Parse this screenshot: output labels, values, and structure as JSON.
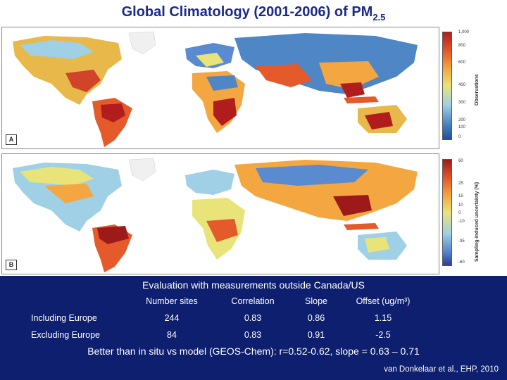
{
  "title": {
    "text": "Global Climatology (2001-2006) of PM",
    "subscript": "2.5"
  },
  "map_a": {
    "panel_label": "A",
    "colorbar_title": "Observations",
    "colorbar_ticks": [
      "1,000",
      "800",
      "600",
      "400",
      "300",
      "200",
      "100",
      "0"
    ]
  },
  "map_b": {
    "panel_label": "B",
    "colorbar_title": "Sampling-induced uncertainty (%)",
    "colorbar_ticks": [
      "60",
      "25",
      "15",
      "10",
      "0",
      "-10",
      "-35",
      "-60"
    ]
  },
  "evaluation": {
    "title": "Evaluation with measurements outside Canada/US",
    "columns": [
      "",
      "Number sites",
      "Correlation",
      "Slope",
      "Offset (ug/m³)"
    ],
    "rows": [
      {
        "label": "Including Europe",
        "sites": "244",
        "correlation": "0.83",
        "slope": "0.86",
        "offset": "1.15"
      },
      {
        "label": "Excluding Europe",
        "sites": "84",
        "correlation": "0.83",
        "slope": "0.91",
        "offset": "-2.5"
      }
    ]
  },
  "note": "Better than in situ vs model (GEOS-Chem): r=0.52-0.62, slope = 0.63 – 0.71",
  "citation": "van Donkelaar et al., EHP, 2010",
  "colors": {
    "slide_background": "#0d1f6e",
    "title_color": "#1b2a8c",
    "ocean": "#ffffff",
    "land_low": "#4f86c6",
    "land_mid": "#e8e47a",
    "land_high": "#b11d1d"
  }
}
